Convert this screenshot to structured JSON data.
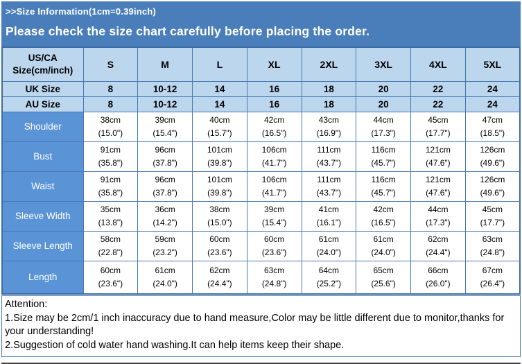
{
  "colors": {
    "banner_bg": "#4A7EBB",
    "table_header_bg": "#BCD6EE",
    "label_cell_bg": "#5B94D6",
    "border_blue": "#4679B2",
    "cell_bg": "#FFFFFF",
    "text_dark": "#000000",
    "text_light": "#FFFFFF"
  },
  "banner": {
    "subtitle": ">>Size Information(1cm=0.39inch)",
    "title": "Please check the size chart carefully before placing the order."
  },
  "size_table": {
    "corner_label_line1": "US/CA",
    "corner_label_line2": "Size(cm/inch)",
    "columns": [
      "S",
      "M",
      "L",
      "XL",
      "2XL",
      "3XL",
      "4XL",
      "5XL"
    ],
    "size_rows": [
      {
        "label": "UK Size",
        "values": [
          "8",
          "10-12",
          "14",
          "16",
          "18",
          "20",
          "22",
          "24"
        ]
      },
      {
        "label": "AU Size",
        "values": [
          "8",
          "10-12",
          "14",
          "16",
          "18",
          "20",
          "22",
          "24"
        ]
      }
    ],
    "measure_rows": [
      {
        "label": "Shoulder",
        "cm": [
          "38cm",
          "39cm",
          "40cm",
          "42cm",
          "43cm",
          "44cm",
          "45cm",
          "47cm"
        ],
        "inch": [
          "(15.0\")",
          "(15.4\")",
          "(15.7\")",
          "(16.5\")",
          "(16.9\")",
          "(17.3\")",
          "(17.7\")",
          "(18.5\")"
        ]
      },
      {
        "label": "Bust",
        "cm": [
          "91cm",
          "96cm",
          "101cm",
          "106cm",
          "111cm",
          "116cm",
          "121cm",
          "126cm"
        ],
        "inch": [
          "(35.8\")",
          "(37.8\")",
          "(39.8\")",
          "(41.7\")",
          "(43.7\")",
          "(45.7\")",
          "(47.6\")",
          "(49.6\")"
        ]
      },
      {
        "label": "Waist",
        "cm": [
          "91cm",
          "96cm",
          "101cm",
          "106cm",
          "111cm",
          "116cm",
          "121cm",
          "126cm"
        ],
        "inch": [
          "(35.8\")",
          "(37.8\")",
          "(39.8\")",
          "(41.7\")",
          "(43.7\")",
          "(45.7\")",
          "(47.6\")",
          "(49.6\")"
        ]
      },
      {
        "label": "Sleeve Width",
        "cm": [
          "35cm",
          "36cm",
          "38cm",
          "39cm",
          "41cm",
          "42cm",
          "44cm",
          "45cm"
        ],
        "inch": [
          "(13.8\")",
          "(14.2\")",
          "(15.0\")",
          "(15.4\")",
          "(16.1\")",
          "(16.5\")",
          "(17.3\")",
          "(17.7\")"
        ]
      },
      {
        "label": "Sleeve Length",
        "cm": [
          "58cm",
          "59cm",
          "60cm",
          "60cm",
          "61cm",
          "61cm",
          "62cm",
          "63cm"
        ],
        "inch": [
          "(22.8\")",
          "(23.2\")",
          "(23.6\")",
          "(23.6\")",
          "(24.0\")",
          "(24.0\")",
          "(24.4\")",
          "(24.8\")"
        ]
      },
      {
        "label": "Length",
        "cm": [
          "60cm",
          "61cm",
          "62cm",
          "63cm",
          "64cm",
          "65cm",
          "66cm",
          "67cm"
        ],
        "inch": [
          "(23.6\")",
          "(24.0\")",
          "(24.4\")",
          "(24.8\")",
          "(25.2\")",
          "(25.6\")",
          "(26.0\")",
          "(26.4\")"
        ]
      }
    ]
  },
  "footer": {
    "lines": [
      "Attention:",
      "1.Size may be 2cm/1 inch inaccuracy due to hand measure,Color may be little different due to monitor,thanks for your understanding!",
      "2.Suggestion of cold water hand washing.It can help items keep their shape."
    ]
  }
}
